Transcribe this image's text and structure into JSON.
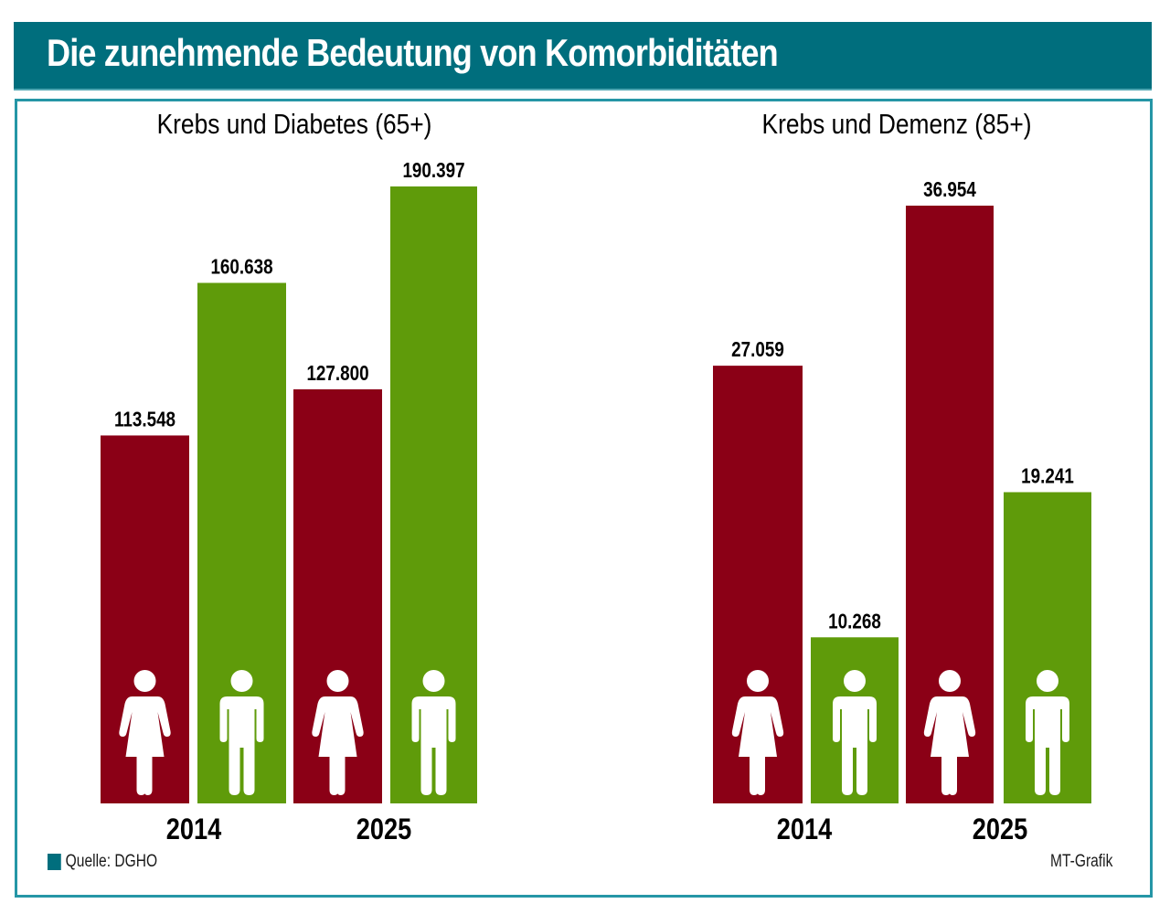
{
  "header": {
    "title": "Die zunehmende Bedeutung von Komorbiditäten"
  },
  "colors": {
    "header_bg": "#006e7d",
    "frame": "#2596a6",
    "female": "#8b0016",
    "male": "#5f9b0a"
  },
  "footer": {
    "source": "Quelle: DGHO",
    "credit": "MT-Grafik"
  },
  "chart_data": [
    {
      "type": "bar",
      "title": "Krebs und Diabetes (65+)",
      "categories": [
        "2014",
        "2025"
      ],
      "series": [
        {
          "name": "Frauen",
          "icon": "female-icon",
          "color": "#8b0016",
          "values": [
            113548,
            127800
          ],
          "labels": [
            "113.548",
            "127.800"
          ]
        },
        {
          "name": "Männer",
          "icon": "male-icon",
          "color": "#5f9b0a",
          "values": [
            160638,
            190397
          ],
          "labels": [
            "160.638",
            "190.397"
          ]
        }
      ],
      "xlabel": "",
      "ylabel": "",
      "ylim": [
        0,
        190397
      ],
      "grid": false,
      "legend": "none"
    },
    {
      "type": "bar",
      "title": "Krebs und Demenz (85+)",
      "categories": [
        "2014",
        "2025"
      ],
      "series": [
        {
          "name": "Frauen",
          "icon": "female-icon",
          "color": "#8b0016",
          "values": [
            27059,
            36954
          ],
          "labels": [
            "27.059",
            "36.954"
          ]
        },
        {
          "name": "Männer",
          "icon": "male-icon",
          "color": "#5f9b0a",
          "values": [
            10268,
            19241
          ],
          "labels": [
            "10.268",
            "19.241"
          ]
        }
      ],
      "xlabel": "",
      "ylabel": "",
      "ylim": [
        0,
        36954
      ],
      "grid": false,
      "legend": "none"
    }
  ]
}
